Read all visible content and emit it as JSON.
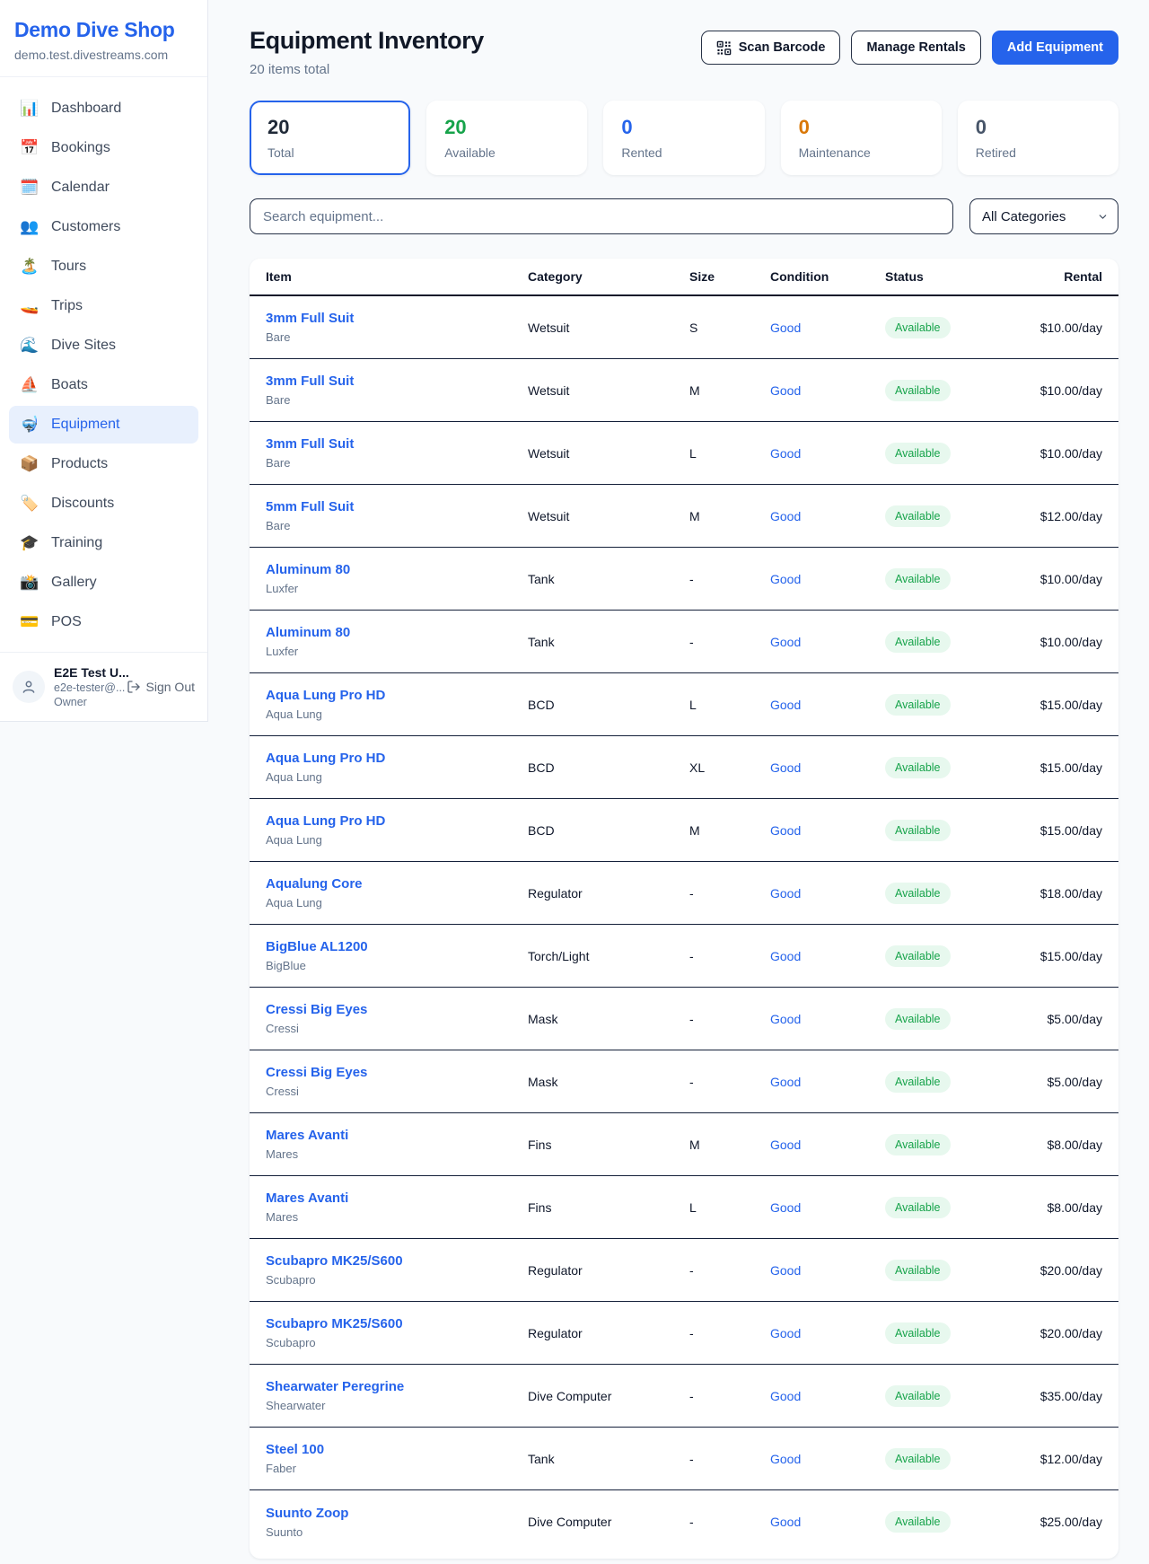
{
  "sidebar": {
    "brand": {
      "name": "Demo Dive Shop",
      "domain": "demo.test.divestreams.com"
    },
    "items": [
      {
        "icon": "📊",
        "icon_name": "dashboard-icon",
        "label": "Dashboard",
        "active": false
      },
      {
        "icon": "📅",
        "icon_name": "bookings-icon",
        "label": "Bookings",
        "active": false
      },
      {
        "icon": "🗓️",
        "icon_name": "calendar-icon",
        "label": "Calendar",
        "active": false
      },
      {
        "icon": "👥",
        "icon_name": "customers-icon",
        "label": "Customers",
        "active": false
      },
      {
        "icon": "🏝️",
        "icon_name": "tours-icon",
        "label": "Tours",
        "active": false
      },
      {
        "icon": "🚤",
        "icon_name": "trips-icon",
        "label": "Trips",
        "active": false
      },
      {
        "icon": "🌊",
        "icon_name": "dive-sites-icon",
        "label": "Dive Sites",
        "active": false
      },
      {
        "icon": "⛵",
        "icon_name": "boats-icon",
        "label": "Boats",
        "active": false
      },
      {
        "icon": "🤿",
        "icon_name": "equipment-icon",
        "label": "Equipment",
        "active": true
      },
      {
        "icon": "📦",
        "icon_name": "products-icon",
        "label": "Products",
        "active": false
      },
      {
        "icon": "🏷️",
        "icon_name": "discounts-icon",
        "label": "Discounts",
        "active": false
      },
      {
        "icon": "🎓",
        "icon_name": "training-icon",
        "label": "Training",
        "active": false
      },
      {
        "icon": "📸",
        "icon_name": "gallery-icon",
        "label": "Gallery",
        "active": false
      },
      {
        "icon": "💳",
        "icon_name": "pos-icon",
        "label": "POS",
        "active": false
      }
    ],
    "user": {
      "name": "E2E Test U...",
      "email": "e2e-tester@...",
      "role": "Owner",
      "sign_out": "Sign Out"
    }
  },
  "header": {
    "title": "Equipment Inventory",
    "subtitle": "20 items total",
    "scan_barcode_label": "Scan Barcode",
    "manage_rentals_label": "Manage Rentals",
    "add_equipment_label": "Add Equipment"
  },
  "stats": [
    {
      "value": "20",
      "label": "Total",
      "color": "#1f2937",
      "active": true
    },
    {
      "value": "20",
      "label": "Available",
      "color": "#16a34a",
      "active": false
    },
    {
      "value": "0",
      "label": "Rented",
      "color": "#2563eb",
      "active": false
    },
    {
      "value": "0",
      "label": "Maintenance",
      "color": "#d97706",
      "active": false
    },
    {
      "value": "0",
      "label": "Retired",
      "color": "#475569",
      "active": false
    }
  ],
  "filters": {
    "search_placeholder": "Search equipment...",
    "category_selected": "All Categories"
  },
  "table": {
    "columns": [
      "Item",
      "Category",
      "Size",
      "Condition",
      "Status",
      "Rental"
    ],
    "rows": [
      {
        "name": "3mm Full Suit",
        "brand": "Bare",
        "category": "Wetsuit",
        "size": "S",
        "condition": "Good",
        "status": "Available",
        "rental": "$10.00/day"
      },
      {
        "name": "3mm Full Suit",
        "brand": "Bare",
        "category": "Wetsuit",
        "size": "M",
        "condition": "Good",
        "status": "Available",
        "rental": "$10.00/day"
      },
      {
        "name": "3mm Full Suit",
        "brand": "Bare",
        "category": "Wetsuit",
        "size": "L",
        "condition": "Good",
        "status": "Available",
        "rental": "$10.00/day"
      },
      {
        "name": "5mm Full Suit",
        "brand": "Bare",
        "category": "Wetsuit",
        "size": "M",
        "condition": "Good",
        "status": "Available",
        "rental": "$12.00/day"
      },
      {
        "name": "Aluminum 80",
        "brand": "Luxfer",
        "category": "Tank",
        "size": "-",
        "condition": "Good",
        "status": "Available",
        "rental": "$10.00/day"
      },
      {
        "name": "Aluminum 80",
        "brand": "Luxfer",
        "category": "Tank",
        "size": "-",
        "condition": "Good",
        "status": "Available",
        "rental": "$10.00/day"
      },
      {
        "name": "Aqua Lung Pro HD",
        "brand": "Aqua Lung",
        "category": "BCD",
        "size": "L",
        "condition": "Good",
        "status": "Available",
        "rental": "$15.00/day"
      },
      {
        "name": "Aqua Lung Pro HD",
        "brand": "Aqua Lung",
        "category": "BCD",
        "size": "XL",
        "condition": "Good",
        "status": "Available",
        "rental": "$15.00/day"
      },
      {
        "name": "Aqua Lung Pro HD",
        "brand": "Aqua Lung",
        "category": "BCD",
        "size": "M",
        "condition": "Good",
        "status": "Available",
        "rental": "$15.00/day"
      },
      {
        "name": "Aqualung Core",
        "brand": "Aqua Lung",
        "category": "Regulator",
        "size": "-",
        "condition": "Good",
        "status": "Available",
        "rental": "$18.00/day"
      },
      {
        "name": "BigBlue AL1200",
        "brand": "BigBlue",
        "category": "Torch/Light",
        "size": "-",
        "condition": "Good",
        "status": "Available",
        "rental": "$15.00/day"
      },
      {
        "name": "Cressi Big Eyes",
        "brand": "Cressi",
        "category": "Mask",
        "size": "-",
        "condition": "Good",
        "status": "Available",
        "rental": "$5.00/day"
      },
      {
        "name": "Cressi Big Eyes",
        "brand": "Cressi",
        "category": "Mask",
        "size": "-",
        "condition": "Good",
        "status": "Available",
        "rental": "$5.00/day"
      },
      {
        "name": "Mares Avanti",
        "brand": "Mares",
        "category": "Fins",
        "size": "M",
        "condition": "Good",
        "status": "Available",
        "rental": "$8.00/day"
      },
      {
        "name": "Mares Avanti",
        "brand": "Mares",
        "category": "Fins",
        "size": "L",
        "condition": "Good",
        "status": "Available",
        "rental": "$8.00/day"
      },
      {
        "name": "Scubapro MK25/S600",
        "brand": "Scubapro",
        "category": "Regulator",
        "size": "-",
        "condition": "Good",
        "status": "Available",
        "rental": "$20.00/day"
      },
      {
        "name": "Scubapro MK25/S600",
        "brand": "Scubapro",
        "category": "Regulator",
        "size": "-",
        "condition": "Good",
        "status": "Available",
        "rental": "$20.00/day"
      },
      {
        "name": "Shearwater Peregrine",
        "brand": "Shearwater",
        "category": "Dive Computer",
        "size": "-",
        "condition": "Good",
        "status": "Available",
        "rental": "$35.00/day"
      },
      {
        "name": "Steel 100",
        "brand": "Faber",
        "category": "Tank",
        "size": "-",
        "condition": "Good",
        "status": "Available",
        "rental": "$12.00/day"
      },
      {
        "name": "Suunto Zoop",
        "brand": "Suunto",
        "category": "Dive Computer",
        "size": "-",
        "condition": "Good",
        "status": "Available",
        "rental": "$25.00/day"
      }
    ]
  }
}
